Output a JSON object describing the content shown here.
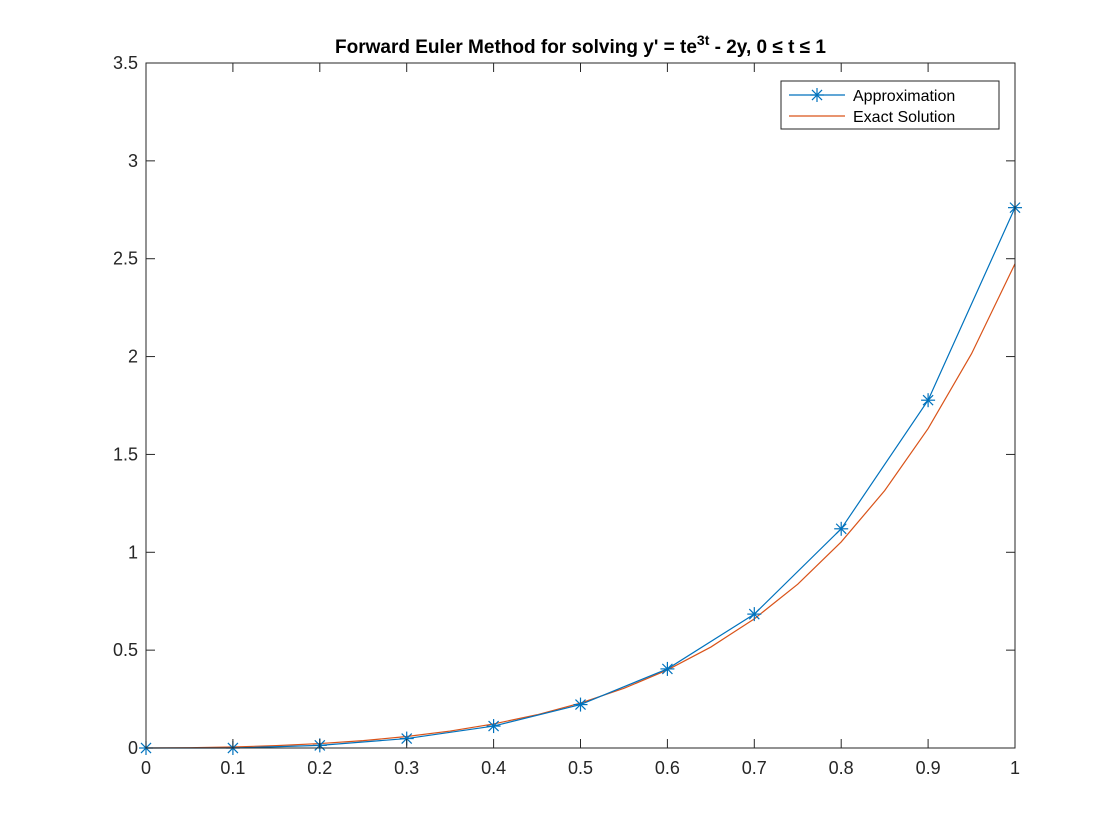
{
  "chart_data": {
    "type": "line",
    "title": {
      "main": "Forward Euler Method for solving y' = te",
      "superscript": "3t",
      "rest": " - 2y, 0 ≤ t ≤ 1"
    },
    "xlabel": "",
    "ylabel": "",
    "xlim": [
      0,
      1
    ],
    "ylim": [
      0,
      3.5
    ],
    "xticks": [
      0,
      0.1,
      0.2,
      0.3,
      0.4,
      0.5,
      0.6,
      0.7,
      0.8,
      0.9,
      1
    ],
    "xtick_labels": [
      "0",
      "0.1",
      "0.2",
      "0.3",
      "0.4",
      "0.5",
      "0.6",
      "0.7",
      "0.8",
      "0.9",
      "1"
    ],
    "yticks": [
      0,
      0.5,
      1,
      1.5,
      2,
      2.5,
      3,
      3.5
    ],
    "ytick_labels": [
      "0",
      "0.5",
      "1",
      "1.5",
      "2",
      "2.5",
      "3",
      "3.5"
    ],
    "grid": false,
    "legend_position": "top-right",
    "series": [
      {
        "name": "Approximation",
        "color": "#0072BD",
        "marker": "asterisk",
        "x": [
          0,
          0.1,
          0.2,
          0.3,
          0.4,
          0.5,
          0.6,
          0.7,
          0.8,
          0.9,
          1.0
        ],
        "y": [
          0,
          0,
          0.0135,
          0.0482,
          0.1121,
          0.2219,
          0.4041,
          0.6841,
          1.12,
          1.7771,
          2.7609
        ]
      },
      {
        "name": "Exact Solution",
        "color": "#D95319",
        "marker": "none",
        "x": [
          0,
          0.05,
          0.1,
          0.15,
          0.2,
          0.25,
          0.3,
          0.35,
          0.4,
          0.45,
          0.5,
          0.55,
          0.6,
          0.65,
          0.7,
          0.75,
          0.8,
          0.85,
          0.9,
          0.95,
          1.0
        ],
        "y": [
          0,
          0.0012,
          0.0051,
          0.0121,
          0.0227,
          0.0378,
          0.0586,
          0.0865,
          0.1229,
          0.1698,
          0.2295,
          0.3048,
          0.3989,
          0.5158,
          0.66,
          0.8369,
          1.0528,
          1.315,
          1.6322,
          2.0146,
          2.4745
        ]
      }
    ]
  }
}
